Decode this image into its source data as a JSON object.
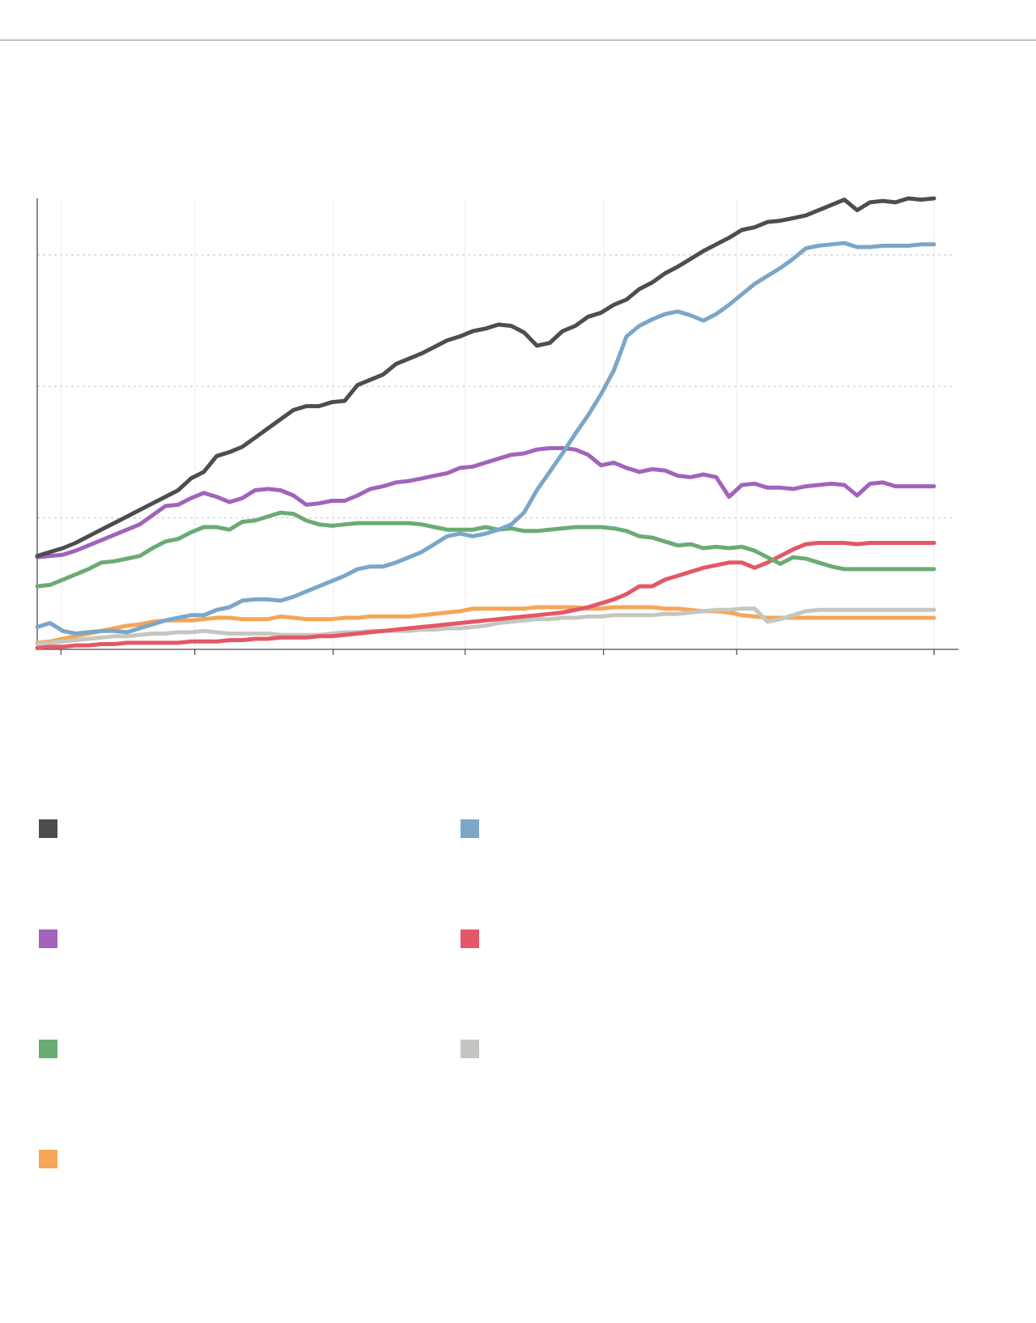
{
  "chart_data": {
    "type": "line",
    "title": "",
    "xlabel": "",
    "ylabel": "",
    "x": [
      0,
      1,
      2,
      3,
      4,
      5,
      6,
      7,
      8,
      9,
      10,
      11,
      12,
      13,
      14,
      15,
      16,
      17,
      18,
      19,
      20,
      21,
      22,
      23,
      24,
      25,
      26,
      27,
      28,
      29,
      30,
      31,
      32,
      33,
      34,
      35,
      36,
      37,
      38,
      39,
      40,
      41,
      42,
      43,
      44,
      45,
      46,
      47,
      48,
      49,
      50,
      51,
      52,
      53,
      54,
      55,
      56,
      57,
      58,
      59,
      60,
      61,
      62,
      63,
      64,
      65,
      66,
      67,
      68,
      69,
      70
    ],
    "xlim": [
      0,
      70
    ],
    "ylim": [
      0,
      3.43
    ],
    "yticks": [
      1,
      2,
      3
    ],
    "grid": {
      "y": true,
      "x": true
    },
    "legend_position": "bottom",
    "series": [
      {
        "color": "#4d4d4d",
        "values": [
          0.71,
          0.74,
          0.77,
          0.81,
          0.86,
          0.91,
          0.96,
          1.01,
          1.06,
          1.11,
          1.16,
          1.21,
          1.3,
          1.35,
          1.47,
          1.5,
          1.54,
          1.61,
          1.68,
          1.75,
          1.82,
          1.85,
          1.85,
          1.88,
          1.89,
          2.01,
          2.05,
          2.09,
          2.17,
          2.21,
          2.25,
          2.3,
          2.35,
          2.38,
          2.42,
          2.44,
          2.47,
          2.46,
          2.41,
          2.31,
          2.33,
          2.42,
          2.46,
          2.53,
          2.56,
          2.62,
          2.66,
          2.74,
          2.79,
          2.86,
          2.91,
          2.97,
          3.03,
          3.08,
          3.13,
          3.19,
          3.21,
          3.25,
          3.26,
          3.28,
          3.3,
          3.34,
          3.38,
          3.42,
          3.34,
          3.4,
          3.41,
          3.4,
          3.43,
          3.42,
          3.43
        ]
      },
      {
        "color": "#7aa6c9",
        "values": [
          0.17,
          0.2,
          0.14,
          0.12,
          0.13,
          0.14,
          0.14,
          0.13,
          0.16,
          0.19,
          0.22,
          0.24,
          0.26,
          0.26,
          0.3,
          0.32,
          0.37,
          0.38,
          0.38,
          0.37,
          0.4,
          0.44,
          0.48,
          0.52,
          0.56,
          0.61,
          0.63,
          0.63,
          0.66,
          0.7,
          0.74,
          0.8,
          0.86,
          0.88,
          0.86,
          0.88,
          0.91,
          0.95,
          1.04,
          1.21,
          1.35,
          1.49,
          1.64,
          1.78,
          1.94,
          2.12,
          2.38,
          2.46,
          2.51,
          2.55,
          2.57,
          2.54,
          2.5,
          2.55,
          2.62,
          2.7,
          2.78,
          2.84,
          2.9,
          2.97,
          3.05,
          3.07,
          3.08,
          3.09,
          3.06,
          3.06,
          3.07,
          3.07,
          3.07,
          3.08,
          3.08
        ]
      },
      {
        "color": "#a064bc",
        "values": [
          0.7,
          0.71,
          0.72,
          0.75,
          0.79,
          0.83,
          0.87,
          0.91,
          0.95,
          1.02,
          1.09,
          1.1,
          1.15,
          1.19,
          1.16,
          1.12,
          1.15,
          1.21,
          1.22,
          1.21,
          1.17,
          1.1,
          1.11,
          1.13,
          1.13,
          1.17,
          1.22,
          1.24,
          1.27,
          1.28,
          1.3,
          1.32,
          1.34,
          1.38,
          1.39,
          1.42,
          1.45,
          1.48,
          1.49,
          1.52,
          1.53,
          1.53,
          1.52,
          1.48,
          1.4,
          1.42,
          1.38,
          1.35,
          1.37,
          1.36,
          1.32,
          1.31,
          1.33,
          1.31,
          1.16,
          1.25,
          1.26,
          1.23,
          1.23,
          1.22,
          1.24,
          1.25,
          1.26,
          1.25,
          1.17,
          1.26,
          1.27,
          1.24,
          1.24,
          1.24,
          1.24
        ]
      },
      {
        "color": "#e25866",
        "values": [
          0.01,
          0.02,
          0.02,
          0.03,
          0.03,
          0.04,
          0.04,
          0.05,
          0.05,
          0.05,
          0.05,
          0.05,
          0.06,
          0.06,
          0.06,
          0.07,
          0.07,
          0.08,
          0.08,
          0.09,
          0.09,
          0.09,
          0.1,
          0.1,
          0.11,
          0.12,
          0.13,
          0.14,
          0.15,
          0.16,
          0.17,
          0.18,
          0.19,
          0.2,
          0.21,
          0.22,
          0.23,
          0.24,
          0.25,
          0.26,
          0.27,
          0.28,
          0.3,
          0.32,
          0.35,
          0.38,
          0.42,
          0.48,
          0.48,
          0.53,
          0.56,
          0.59,
          0.62,
          0.64,
          0.66,
          0.66,
          0.62,
          0.66,
          0.71,
          0.76,
          0.8,
          0.81,
          0.81,
          0.81,
          0.8,
          0.81,
          0.81,
          0.81,
          0.81,
          0.81,
          0.81
        ]
      },
      {
        "color": "#6aab75",
        "values": [
          0.48,
          0.49,
          0.53,
          0.57,
          0.61,
          0.66,
          0.67,
          0.69,
          0.71,
          0.77,
          0.82,
          0.84,
          0.89,
          0.93,
          0.93,
          0.91,
          0.97,
          0.98,
          1.01,
          1.04,
          1.03,
          0.98,
          0.95,
          0.94,
          0.95,
          0.96,
          0.96,
          0.96,
          0.96,
          0.96,
          0.95,
          0.93,
          0.91,
          0.91,
          0.91,
          0.93,
          0.91,
          0.92,
          0.9,
          0.9,
          0.91,
          0.92,
          0.93,
          0.93,
          0.93,
          0.92,
          0.9,
          0.86,
          0.85,
          0.82,
          0.79,
          0.8,
          0.77,
          0.78,
          0.77,
          0.78,
          0.75,
          0.7,
          0.65,
          0.7,
          0.69,
          0.66,
          0.63,
          0.61,
          0.61,
          0.61,
          0.61,
          0.61,
          0.61,
          0.61,
          0.61
        ]
      },
      {
        "color": "#c6c6c0",
        "values": [
          0.04,
          0.05,
          0.06,
          0.07,
          0.08,
          0.09,
          0.1,
          0.1,
          0.11,
          0.12,
          0.12,
          0.13,
          0.13,
          0.14,
          0.13,
          0.12,
          0.12,
          0.12,
          0.12,
          0.11,
          0.11,
          0.11,
          0.11,
          0.12,
          0.13,
          0.13,
          0.14,
          0.14,
          0.14,
          0.14,
          0.15,
          0.15,
          0.16,
          0.16,
          0.17,
          0.18,
          0.2,
          0.21,
          0.22,
          0.23,
          0.23,
          0.24,
          0.24,
          0.25,
          0.25,
          0.26,
          0.26,
          0.26,
          0.26,
          0.27,
          0.27,
          0.28,
          0.29,
          0.3,
          0.3,
          0.31,
          0.31,
          0.21,
          0.23,
          0.26,
          0.29,
          0.3,
          0.3,
          0.3,
          0.3,
          0.3,
          0.3,
          0.3,
          0.3,
          0.3,
          0.3
        ]
      },
      {
        "color": "#f5a656",
        "values": [
          0.05,
          0.06,
          0.08,
          0.1,
          0.12,
          0.14,
          0.16,
          0.18,
          0.19,
          0.21,
          0.22,
          0.22,
          0.22,
          0.23,
          0.24,
          0.24,
          0.23,
          0.23,
          0.23,
          0.25,
          0.24,
          0.23,
          0.23,
          0.23,
          0.24,
          0.24,
          0.25,
          0.25,
          0.25,
          0.25,
          0.26,
          0.27,
          0.28,
          0.29,
          0.31,
          0.31,
          0.31,
          0.31,
          0.31,
          0.32,
          0.32,
          0.32,
          0.32,
          0.31,
          0.31,
          0.32,
          0.32,
          0.32,
          0.32,
          0.31,
          0.31,
          0.3,
          0.29,
          0.29,
          0.28,
          0.26,
          0.25,
          0.24,
          0.24,
          0.24,
          0.24,
          0.24,
          0.24,
          0.24,
          0.24,
          0.24,
          0.24,
          0.24,
          0.24,
          0.24,
          0.24
        ]
      }
    ]
  }
}
